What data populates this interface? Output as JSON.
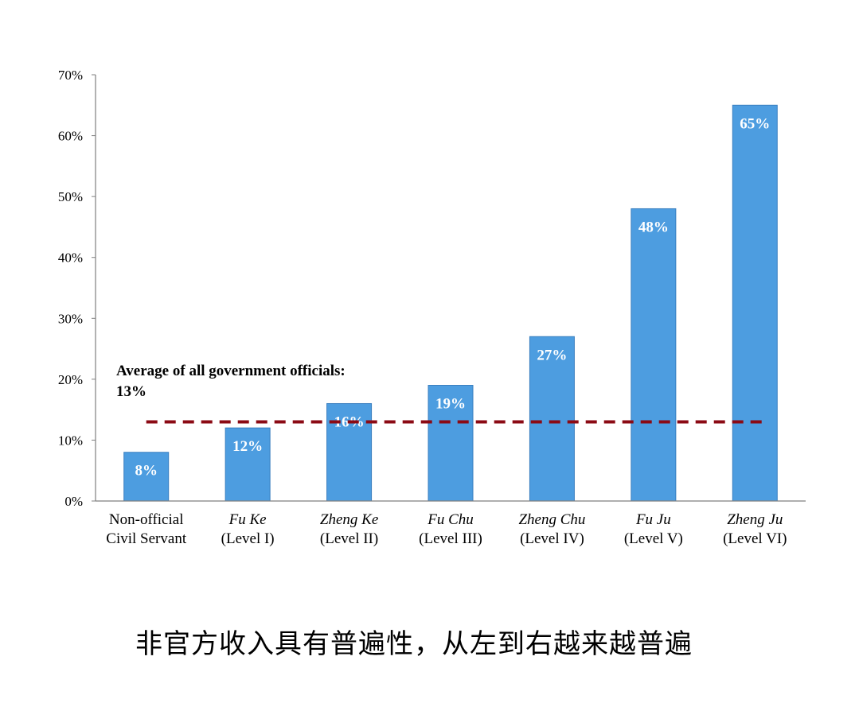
{
  "chart_data": {
    "type": "bar",
    "categories": [
      {
        "name": "Non-official",
        "sub": "Civil Servant",
        "italic": false
      },
      {
        "name": "Fu Ke",
        "sub": "(Level I)",
        "italic": true
      },
      {
        "name": "Zheng Ke",
        "sub": "(Level II)",
        "italic": true
      },
      {
        "name": "Fu Chu",
        "sub": "(Level III)",
        "italic": true
      },
      {
        "name": "Zheng Chu",
        "sub": "(Level IV)",
        "italic": true
      },
      {
        "name": "Fu Ju",
        "sub": "(Level V)",
        "italic": true
      },
      {
        "name": "Zheng Ju",
        "sub": "(Level VI)",
        "italic": true
      }
    ],
    "values": [
      8,
      12,
      16,
      19,
      27,
      48,
      65
    ],
    "value_labels": [
      "8%",
      "12%",
      "16%",
      "19%",
      "27%",
      "48%",
      "65%"
    ],
    "ylim": [
      0,
      70
    ],
    "yticks": [
      0,
      10,
      20,
      30,
      40,
      50,
      60,
      70
    ],
    "ytick_labels": [
      "0%",
      "10%",
      "20%",
      "30%",
      "40%",
      "50%",
      "60%",
      "70%"
    ],
    "average": {
      "value": 13,
      "label_line1": "Average of all government officials:",
      "label_line2": "13%"
    },
    "bar_color": "#4d9de0",
    "bar_stroke": "#3a7fc0",
    "avg_color": "#8b0a14",
    "axis_color": "#7f7f7f"
  },
  "caption": "非官方收入具有普遍性，从左到右越来越普遍"
}
